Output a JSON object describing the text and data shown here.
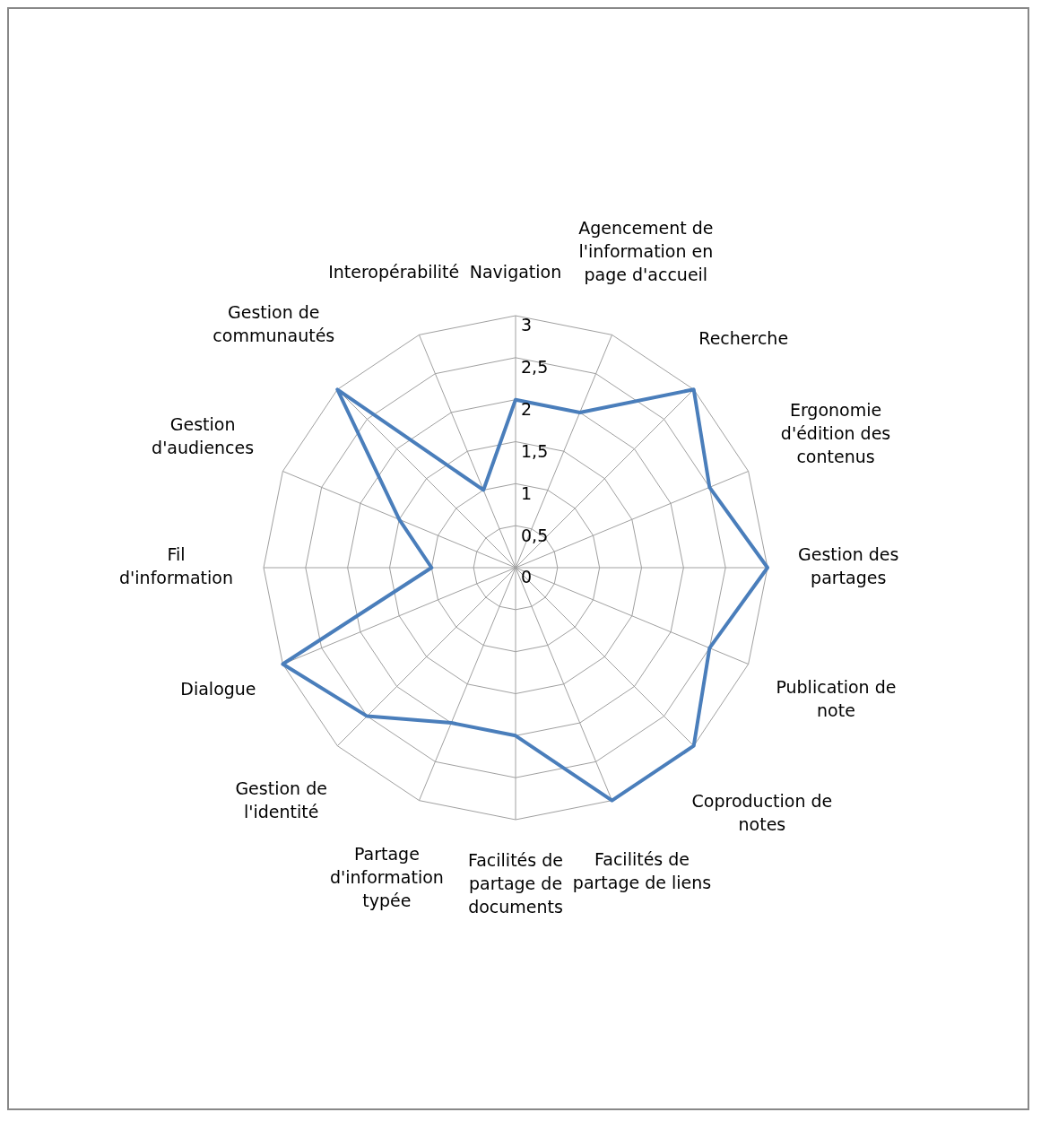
{
  "chart_data": {
    "type": "radar",
    "categories": [
      "Navigation",
      "Agencement de l'information en page d'accueil",
      "Recherche",
      "Ergonomie d'édition des contenus",
      "Gestion des partages",
      "Publication de note",
      "Coproduction de notes",
      "Facilités de partage de liens",
      "Facilités de partage de documents",
      "Partage d'information typée",
      "Gestion de l'identité",
      "Dialogue",
      "Fil d'information",
      "Gestion d'audiences",
      "Gestion de communautés",
      "Interopérabilité"
    ],
    "series": [
      {
        "color": "#4a7ebb",
        "values": [
          2,
          2,
          3,
          2.5,
          3,
          2.5,
          3,
          3,
          2,
          2,
          2.5,
          3,
          1,
          1.5,
          3,
          1
        ]
      }
    ],
    "ylim": [
      0,
      3
    ],
    "yticks": [
      0,
      {
        "value": 0.5,
        "label": "0,5"
      },
      1,
      {
        "value": 1.5,
        "label": "1,5"
      },
      2,
      {
        "value": 2.5,
        "label": "2,5"
      },
      3
    ],
    "grid": true,
    "legend": false,
    "marker": "none",
    "line_style": "solid"
  }
}
